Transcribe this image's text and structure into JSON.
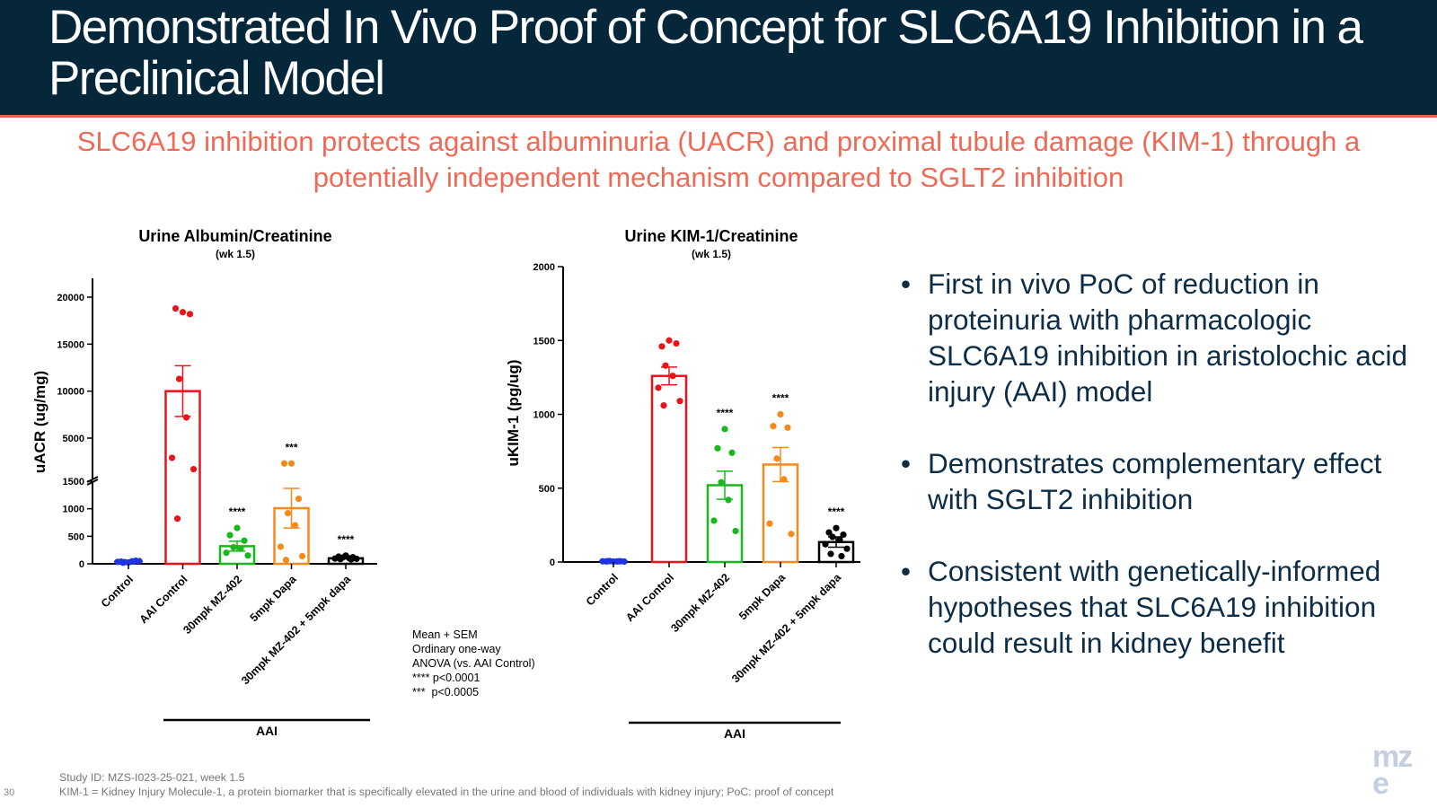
{
  "slide": {
    "title": "Demonstrated In Vivo Proof of Concept for SLC6A19 Inhibition in a Preclinical Model",
    "subtitle": "SLC6A19 inhibition protects against albuminuria (UACR) and proximal tubule damage (KIM-1) through a potentially independent mechanism compared to SGLT2 inhibition",
    "page_number": "30",
    "logo": "mz e"
  },
  "bullets": [
    "First in vivo PoC of reduction in proteinuria with pharmacologic SLC6A19 inhibition in aristolochic acid injury (AAI) model",
    "Demonstrates complementary effect with SGLT2 inhibition",
    "Consistent with genetically-informed hypotheses that SLC6A19 inhibition could result in kidney benefit"
  ],
  "stats_note": [
    "Mean + SEM",
    "Ordinary one-way",
    "ANOVA (vs. AAI Control)",
    "**** p<0.0001",
    "***  p<0.0005"
  ],
  "footnotes": [
    "Study ID: MZS-I023-25-021, week 1.5",
    "KIM-1 = Kidney Injury Molecule-1, a protein biomarker that is specifically elevated in the urine and blood of individuals with kidney injury;  PoC: proof of concept"
  ],
  "colors": {
    "header_bg": "#06263a",
    "header_rule": "#e8624f",
    "subtitle": "#ef6a56",
    "bullet_text": "#0b2d47",
    "Control": "#1f33e6",
    "AAI Control": "#e8141a",
    "30mpk MZ-402": "#1ab81e",
    "5mpk Dapa": "#f58a1c",
    "30mpk MZ-402 + 5mpk dapa": "#000000"
  },
  "chart_data": [
    {
      "type": "bar",
      "title": "Urine Albumin/Creatinine",
      "subtitle": "(wk 1.5)",
      "ylabel": "uACR (ug/mg)",
      "y_axis": "broken",
      "ylim_lower": [
        0,
        1500
      ],
      "ylim_upper": [
        1500,
        20000
      ],
      "yticks_lower": [
        "0",
        "500",
        "1000",
        "1500"
      ],
      "yticks_upper": [
        "5000",
        "10000",
        "15000",
        "20000"
      ],
      "categories": [
        "Control",
        "AAI Control",
        "30mpk MZ-402",
        "5mpk Dapa",
        "30mpk MZ-402 + 5mpk dapa"
      ],
      "group_label": "AAI",
      "group_categories": [
        "AAI Control",
        "30mpk MZ-402",
        "5mpk Dapa",
        "30mpk MZ-402 + 5mpk dapa"
      ],
      "means": [
        40,
        10000,
        320,
        1010,
        100
      ],
      "sem": [
        8,
        2700,
        90,
        360,
        10
      ],
      "significance": [
        "",
        "",
        "****",
        "***",
        "****"
      ],
      "points": [
        [
          25,
          40,
          55,
          30,
          45,
          35,
          50,
          20,
          40
        ],
        [
          18400,
          18800,
          18200,
          11300,
          7200,
          2900,
          1700,
          820
        ],
        [
          650,
          520,
          420,
          300,
          280,
          200,
          150
        ],
        [
          2300,
          2300,
          1180,
          920,
          700,
          310,
          140,
          70
        ],
        [
          150,
          130,
          120,
          110,
          100,
          95,
          90,
          85,
          80
        ]
      ]
    },
    {
      "type": "bar",
      "title": "Urine KIM-1/Creatinine",
      "subtitle": "(wk 1.5)",
      "ylabel": "uKIM-1 (pg/ug)",
      "ylim": [
        0,
        2000
      ],
      "yticks": [
        "0",
        "500",
        "1000",
        "1500",
        "2000"
      ],
      "categories": [
        "Control",
        "AAI Control",
        "30mpk MZ-402",
        "5mpk Dapa",
        "30mpk MZ-402 + 5mpk dapa"
      ],
      "group_label": "AAI",
      "group_categories": [
        "AAI Control",
        "30mpk MZ-402",
        "5mpk Dapa",
        "30mpk MZ-402 + 5mpk dapa"
      ],
      "means": [
        5,
        1260,
        520,
        660,
        135
      ],
      "sem": [
        2,
        60,
        95,
        115,
        35
      ],
      "significance": [
        "",
        "",
        "****",
        "****",
        "****"
      ],
      "points": [
        [
          3,
          4,
          5,
          6,
          4,
          5,
          3,
          6,
          5
        ],
        [
          1500,
          1460,
          1480,
          1330,
          1260,
          1180,
          1090,
          1060
        ],
        [
          900,
          770,
          740,
          540,
          420,
          280,
          210
        ],
        [
          1000,
          920,
          910,
          700,
          560,
          260,
          190
        ],
        [
          230,
          200,
          185,
          170,
          150,
          120,
          90,
          55,
          40
        ]
      ]
    }
  ]
}
